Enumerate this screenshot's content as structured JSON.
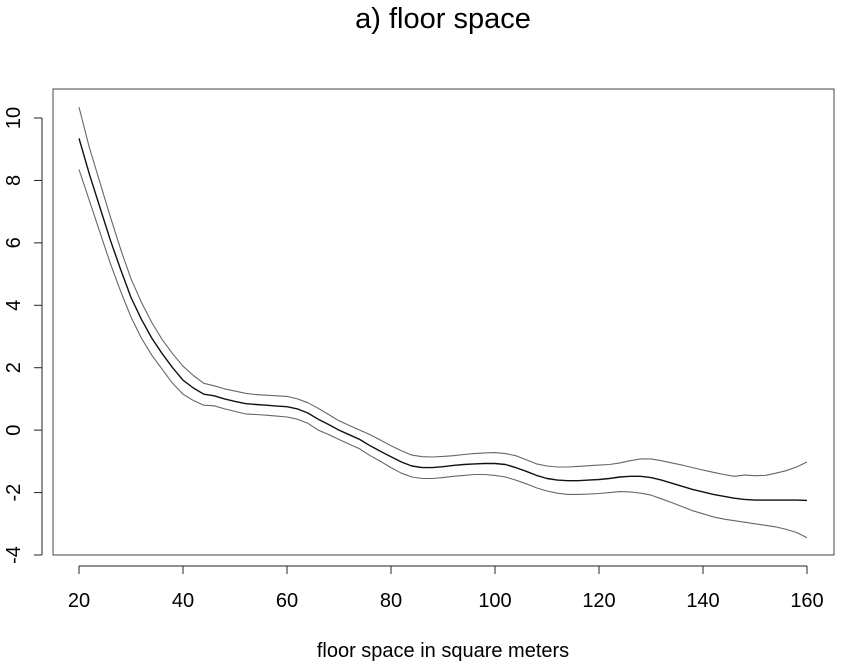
{
  "chart_data": {
    "type": "line",
    "title": "a) floor space",
    "xlabel": "floor space in square meters",
    "ylabel": "",
    "xlim": [
      20,
      160
    ],
    "ylim": [
      -4,
      10
    ],
    "x_ticks": [
      20,
      40,
      60,
      80,
      100,
      120,
      140,
      160
    ],
    "y_ticks": [
      -4,
      -2,
      0,
      2,
      4,
      6,
      8,
      10
    ],
    "grid": false,
    "legend": "none",
    "x": [
      20,
      22,
      24,
      26,
      28,
      30,
      32,
      34,
      36,
      38,
      40,
      42,
      44,
      46,
      48,
      50,
      52,
      54,
      56,
      58,
      60,
      62,
      64,
      66,
      68,
      70,
      72,
      74,
      76,
      78,
      80,
      82,
      84,
      86,
      88,
      90,
      92,
      94,
      96,
      98,
      100,
      102,
      104,
      106,
      108,
      110,
      112,
      114,
      116,
      118,
      120,
      122,
      124,
      126,
      128,
      130,
      132,
      134,
      136,
      138,
      140,
      142,
      144,
      146,
      148,
      150,
      152,
      154,
      156,
      158,
      160
    ],
    "series": [
      {
        "color": "#111111",
        "values": [
          9.35,
          8.2,
          7.15,
          6.1,
          5.15,
          4.25,
          3.55,
          2.95,
          2.45,
          2.0,
          1.6,
          1.35,
          1.15,
          1.1,
          1.0,
          0.92,
          0.85,
          0.82,
          0.8,
          0.77,
          0.75,
          0.68,
          0.55,
          0.35,
          0.18,
          0.0,
          -0.15,
          -0.3,
          -0.5,
          -0.68,
          -0.85,
          -1.02,
          -1.15,
          -1.2,
          -1.2,
          -1.17,
          -1.13,
          -1.1,
          -1.08,
          -1.07,
          -1.07,
          -1.1,
          -1.2,
          -1.32,
          -1.45,
          -1.55,
          -1.6,
          -1.62,
          -1.62,
          -1.6,
          -1.58,
          -1.55,
          -1.5,
          -1.48,
          -1.48,
          -1.52,
          -1.6,
          -1.7,
          -1.8,
          -1.9,
          -1.98,
          -2.06,
          -2.12,
          -2.18,
          -2.22,
          -2.24,
          -2.24,
          -2.24,
          -2.24,
          -2.24,
          -2.25
        ]
      },
      {
        "color": "#666666",
        "values": [
          10.35,
          9.05,
          7.95,
          6.85,
          5.8,
          4.85,
          4.1,
          3.45,
          2.9,
          2.45,
          2.05,
          1.75,
          1.5,
          1.42,
          1.32,
          1.25,
          1.18,
          1.14,
          1.12,
          1.1,
          1.08,
          1.0,
          0.88,
          0.7,
          0.5,
          0.3,
          0.15,
          0.0,
          -0.15,
          -0.32,
          -0.5,
          -0.66,
          -0.8,
          -0.85,
          -0.86,
          -0.84,
          -0.82,
          -0.78,
          -0.75,
          -0.73,
          -0.72,
          -0.75,
          -0.82,
          -0.95,
          -1.08,
          -1.15,
          -1.18,
          -1.18,
          -1.16,
          -1.14,
          -1.12,
          -1.1,
          -1.05,
          -0.98,
          -0.92,
          -0.92,
          -0.98,
          -1.05,
          -1.12,
          -1.2,
          -1.28,
          -1.35,
          -1.42,
          -1.48,
          -1.44,
          -1.46,
          -1.45,
          -1.38,
          -1.3,
          -1.18,
          -1.02
        ]
      },
      {
        "color": "#666666",
        "values": [
          8.35,
          7.35,
          6.35,
          5.35,
          4.45,
          3.62,
          2.95,
          2.4,
          1.95,
          1.5,
          1.15,
          0.95,
          0.8,
          0.78,
          0.68,
          0.6,
          0.52,
          0.5,
          0.48,
          0.45,
          0.42,
          0.35,
          0.22,
          0.0,
          -0.14,
          -0.3,
          -0.45,
          -0.6,
          -0.82,
          -1.0,
          -1.2,
          -1.38,
          -1.5,
          -1.55,
          -1.55,
          -1.52,
          -1.48,
          -1.45,
          -1.42,
          -1.42,
          -1.45,
          -1.5,
          -1.6,
          -1.72,
          -1.85,
          -1.95,
          -2.02,
          -2.06,
          -2.06,
          -2.05,
          -2.03,
          -2.0,
          -1.97,
          -1.98,
          -2.02,
          -2.08,
          -2.2,
          -2.32,
          -2.45,
          -2.58,
          -2.68,
          -2.78,
          -2.85,
          -2.9,
          -2.95,
          -3.0,
          -3.05,
          -3.1,
          -3.18,
          -3.28,
          -3.45
        ]
      }
    ]
  }
}
